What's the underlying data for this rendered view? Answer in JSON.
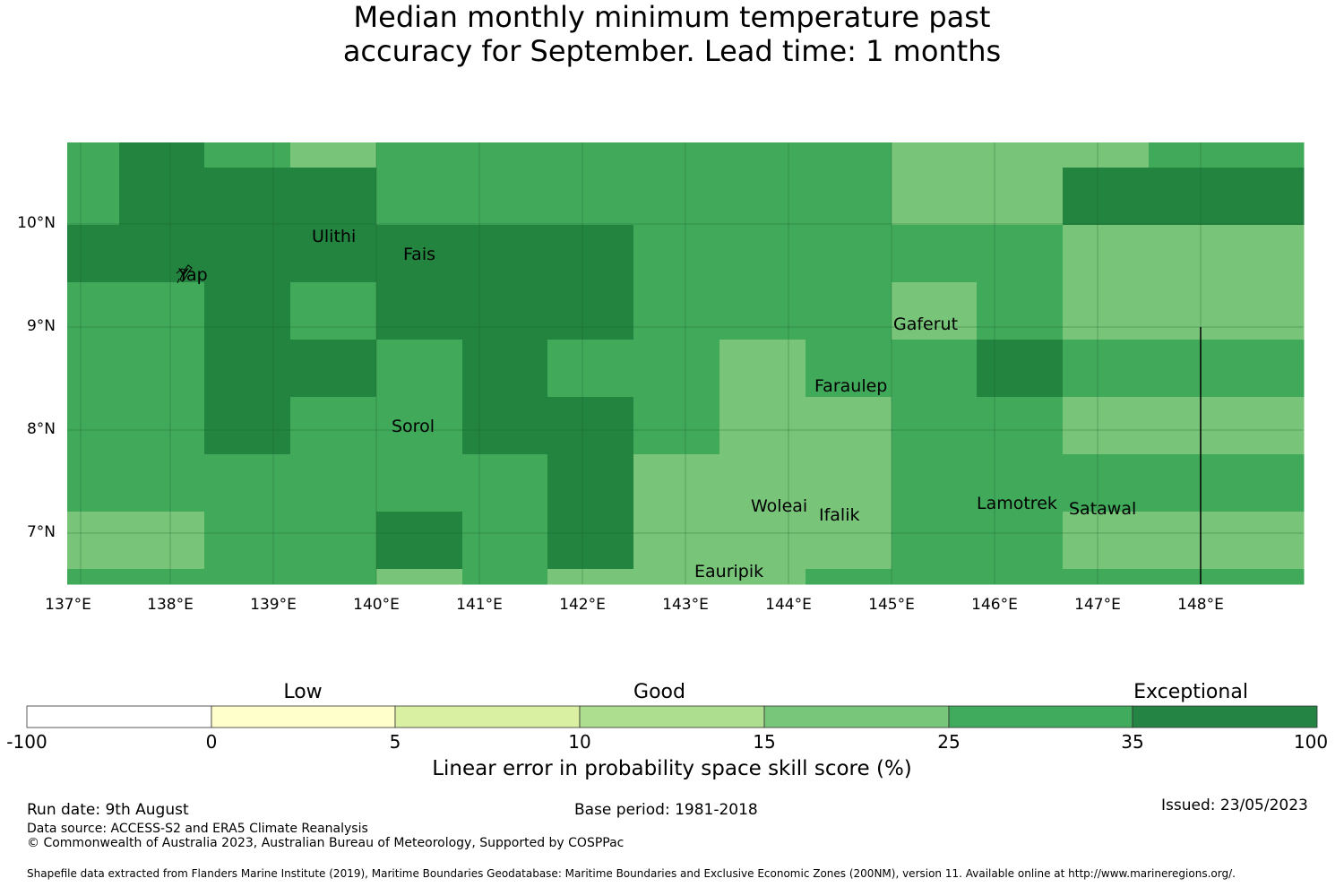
{
  "title": {
    "line1": "Median monthly minimum temperature past",
    "line2": "accuracy for September. Lead time: 1 months"
  },
  "colors": {
    "c15_25": "#78c479",
    "c25_35": "#41a95a",
    "c35_100": "#23843f",
    "gridline": "#1a5c2a"
  },
  "grid": {
    "lon_start": 137.0,
    "lat_top": 10.8,
    "cell_deg": 0.833,
    "rows": [
      [
        2,
        3,
        2,
        2,
        1,
        1,
        4,
        4,
        4,
        4,
        4,
        4,
        4,
        4,
        4,
        4,
        4,
        4,
        1,
        1,
        1,
        1,
        1,
        4
      ],
      [
        2,
        3,
        3,
        3,
        3,
        3,
        2,
        2,
        2,
        2,
        2,
        2,
        2,
        2,
        2,
        2,
        2,
        2,
        1,
        1,
        1,
        1,
        3,
        3
      ],
      [
        3,
        3,
        3,
        3,
        3,
        3,
        3,
        3,
        3,
        3,
        3,
        3,
        2,
        2,
        2,
        2,
        2,
        2,
        2,
        2,
        2,
        2,
        1,
        1
      ],
      [
        2,
        2,
        3,
        3,
        3,
        2,
        2,
        3,
        3,
        3,
        3,
        3,
        2,
        2,
        2,
        2,
        2,
        2,
        2,
        2,
        2,
        2,
        2,
        2
      ],
      [
        2,
        2,
        3,
        3,
        3,
        2,
        2,
        3,
        3,
        3,
        3,
        3,
        2,
        2,
        2,
        2,
        2,
        2,
        1,
        1,
        2,
        2,
        1,
        1
      ],
      [
        2,
        2,
        3,
        3,
        3,
        3,
        3,
        3,
        3,
        3,
        3,
        3,
        2,
        2,
        2,
        2,
        2,
        2,
        2,
        2,
        2,
        2,
        2,
        2
      ],
      [
        2,
        2,
        3,
        3,
        3,
        3,
        2,
        2,
        3,
        3,
        2,
        2,
        2,
        2,
        1,
        1,
        2,
        2,
        2,
        2,
        3,
        3,
        2,
        2
      ],
      [
        2,
        2,
        3,
        3,
        3,
        2,
        2,
        2,
        3,
        3,
        3,
        3,
        2,
        2,
        1,
        1,
        1,
        1,
        2,
        2,
        2,
        2,
        1,
        1
      ],
      [
        2,
        2,
        2,
        2,
        2,
        2,
        2,
        2,
        2,
        2,
        3,
        3,
        1,
        1,
        1,
        1,
        1,
        1,
        2,
        2,
        2,
        2,
        2,
        2
      ],
      [
        1,
        1,
        2,
        2,
        2,
        2,
        3,
        3,
        2,
        2,
        3,
        3,
        1,
        1,
        1,
        1,
        1,
        1,
        2,
        2,
        2,
        2,
        1,
        1
      ],
      [
        2,
        2,
        2,
        2,
        2,
        2,
        2,
        2,
        2,
        2,
        2,
        2,
        1,
        1,
        1,
        1,
        1,
        1,
        2,
        2,
        2,
        2,
        2,
        2
      ],
      [
        2,
        2,
        2,
        2,
        2,
        2,
        1,
        1,
        2,
        2,
        1,
        1,
        1,
        1,
        1,
        1,
        2,
        2,
        2,
        2,
        2,
        2,
        2,
        2
      ]
    ]
  },
  "axes": {
    "lat_labels": [
      "10°N",
      "9°N",
      "8°N",
      "7°N"
    ],
    "lon_labels": [
      "137°E",
      "138°E",
      "139°E",
      "140°E",
      "141°E",
      "142°E",
      "143°E",
      "144°E",
      "145°E",
      "146°E",
      "147°E",
      "148°E"
    ]
  },
  "places": [
    {
      "name": "Ulithi"
    },
    {
      "name": "Fais"
    },
    {
      "name": "Yap"
    },
    {
      "name": "Gaferut"
    },
    {
      "name": "Faraulep"
    },
    {
      "name": "Sorol"
    },
    {
      "name": "Woleai"
    },
    {
      "name": "Ifalik"
    },
    {
      "name": "Lamotrek"
    },
    {
      "name": "Satawal"
    },
    {
      "name": "Eauripik"
    }
  ],
  "colorbar": {
    "categories": [
      "Low",
      "Good",
      "Exceptional"
    ],
    "ticks": [
      "-100",
      "0",
      "5",
      "10",
      "15",
      "25",
      "35",
      "100"
    ],
    "colors": [
      "#ffffff",
      "#ffffcc",
      "#d9f0a3",
      "#addd8e",
      "#78c679",
      "#41ab5d",
      "#238443"
    ],
    "label": "Linear error in probability space skill score (%)"
  },
  "footer": {
    "run_date": "Run date: 9th August",
    "base_period": "Base period: 1981-2018",
    "issued": "Issued: 23/05/2023",
    "data_source": "Data source: ACCESS-S2 and ERA5 Climate Reanalysis",
    "copyright": "© Commonwealth of Australia 2023, Australian Bureau of Meteorology, Supported by COSPPac",
    "shapefile": "Shapefile data extracted from Flanders Marine Institute (2019), Maritime Boundaries Geodatabase: Maritime Boundaries and Exclusive Economic Zones (200NM), version 11. Available online at http://www.marineregions.org/."
  }
}
